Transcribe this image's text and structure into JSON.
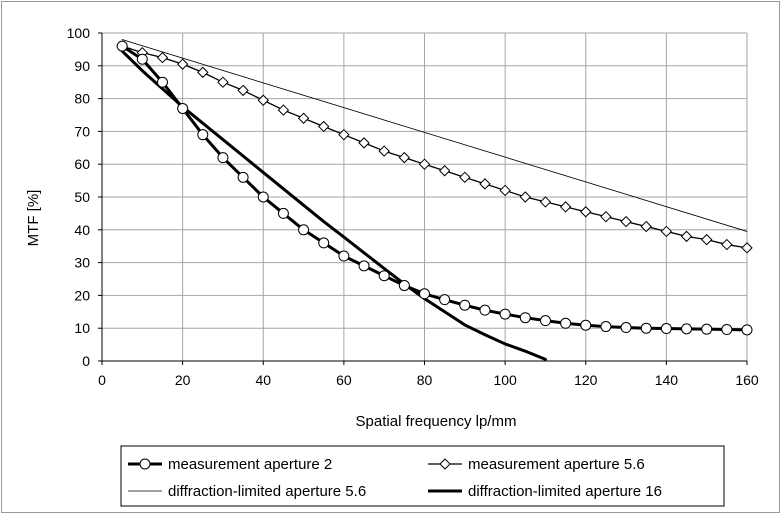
{
  "chart_data": {
    "type": "line",
    "xlabel": "Spatial frequency  lp/mm",
    "ylabel": "MTF  [%]",
    "xlim": [
      0,
      160
    ],
    "ylim": [
      0,
      100
    ],
    "xticks": [
      0,
      20,
      40,
      60,
      80,
      100,
      120,
      140,
      160
    ],
    "yticks": [
      0,
      10,
      20,
      30,
      40,
      50,
      60,
      70,
      80,
      90,
      100
    ],
    "grid": "on",
    "legend_position": "bottom",
    "series": [
      {
        "name": "measurement aperture 2",
        "marker": "circle",
        "line": "thick",
        "x": [
          5,
          10,
          15,
          20,
          25,
          30,
          35,
          40,
          45,
          50,
          55,
          60,
          65,
          70,
          75,
          80,
          85,
          90,
          95,
          100,
          105,
          110,
          115,
          120,
          125,
          130,
          135,
          140,
          145,
          150,
          155,
          160
        ],
        "y": [
          96,
          92,
          85,
          77,
          69,
          62,
          56,
          50,
          45,
          40,
          36,
          32,
          29,
          26,
          23,
          20.5,
          18.7,
          17,
          15.5,
          14.3,
          13.2,
          12.3,
          11.5,
          10.9,
          10.5,
          10.2,
          10,
          9.9,
          9.8,
          9.7,
          9.6,
          9.5
        ]
      },
      {
        "name": "measurement aperture 5.6",
        "marker": "diamond",
        "line": "medium",
        "x": [
          5,
          10,
          15,
          20,
          25,
          30,
          35,
          40,
          45,
          50,
          55,
          60,
          65,
          70,
          75,
          80,
          85,
          90,
          95,
          100,
          105,
          110,
          115,
          120,
          125,
          130,
          135,
          140,
          145,
          150,
          155,
          160
        ],
        "y": [
          96,
          94,
          92.5,
          90.5,
          88,
          85,
          82.5,
          79.5,
          76.5,
          74,
          71.5,
          69,
          66.5,
          64,
          62,
          60,
          58,
          56,
          54,
          52,
          50,
          48.5,
          47,
          45.5,
          44,
          42.5,
          41,
          39.5,
          38,
          37,
          35.5,
          34.5
        ]
      },
      {
        "name": "diffraction-limited aperture 5.6",
        "marker": "none",
        "line": "thin",
        "x": [
          5,
          160
        ],
        "y": [
          98,
          39.5
        ]
      },
      {
        "name": "diffraction-limited aperture 16",
        "marker": "none",
        "line": "thick",
        "x": [
          5,
          10,
          15,
          20,
          25,
          30,
          35,
          40,
          45,
          50,
          55,
          60,
          65,
          70,
          75,
          80,
          85,
          90,
          95,
          100,
          105,
          110
        ],
        "y": [
          94.5,
          88.5,
          83,
          77.5,
          72.5,
          67.5,
          62.5,
          57.5,
          52.5,
          47.5,
          42.5,
          37.8,
          33,
          28.2,
          23.5,
          19,
          15,
          11,
          8,
          5.2,
          3,
          0.5
        ]
      }
    ]
  }
}
